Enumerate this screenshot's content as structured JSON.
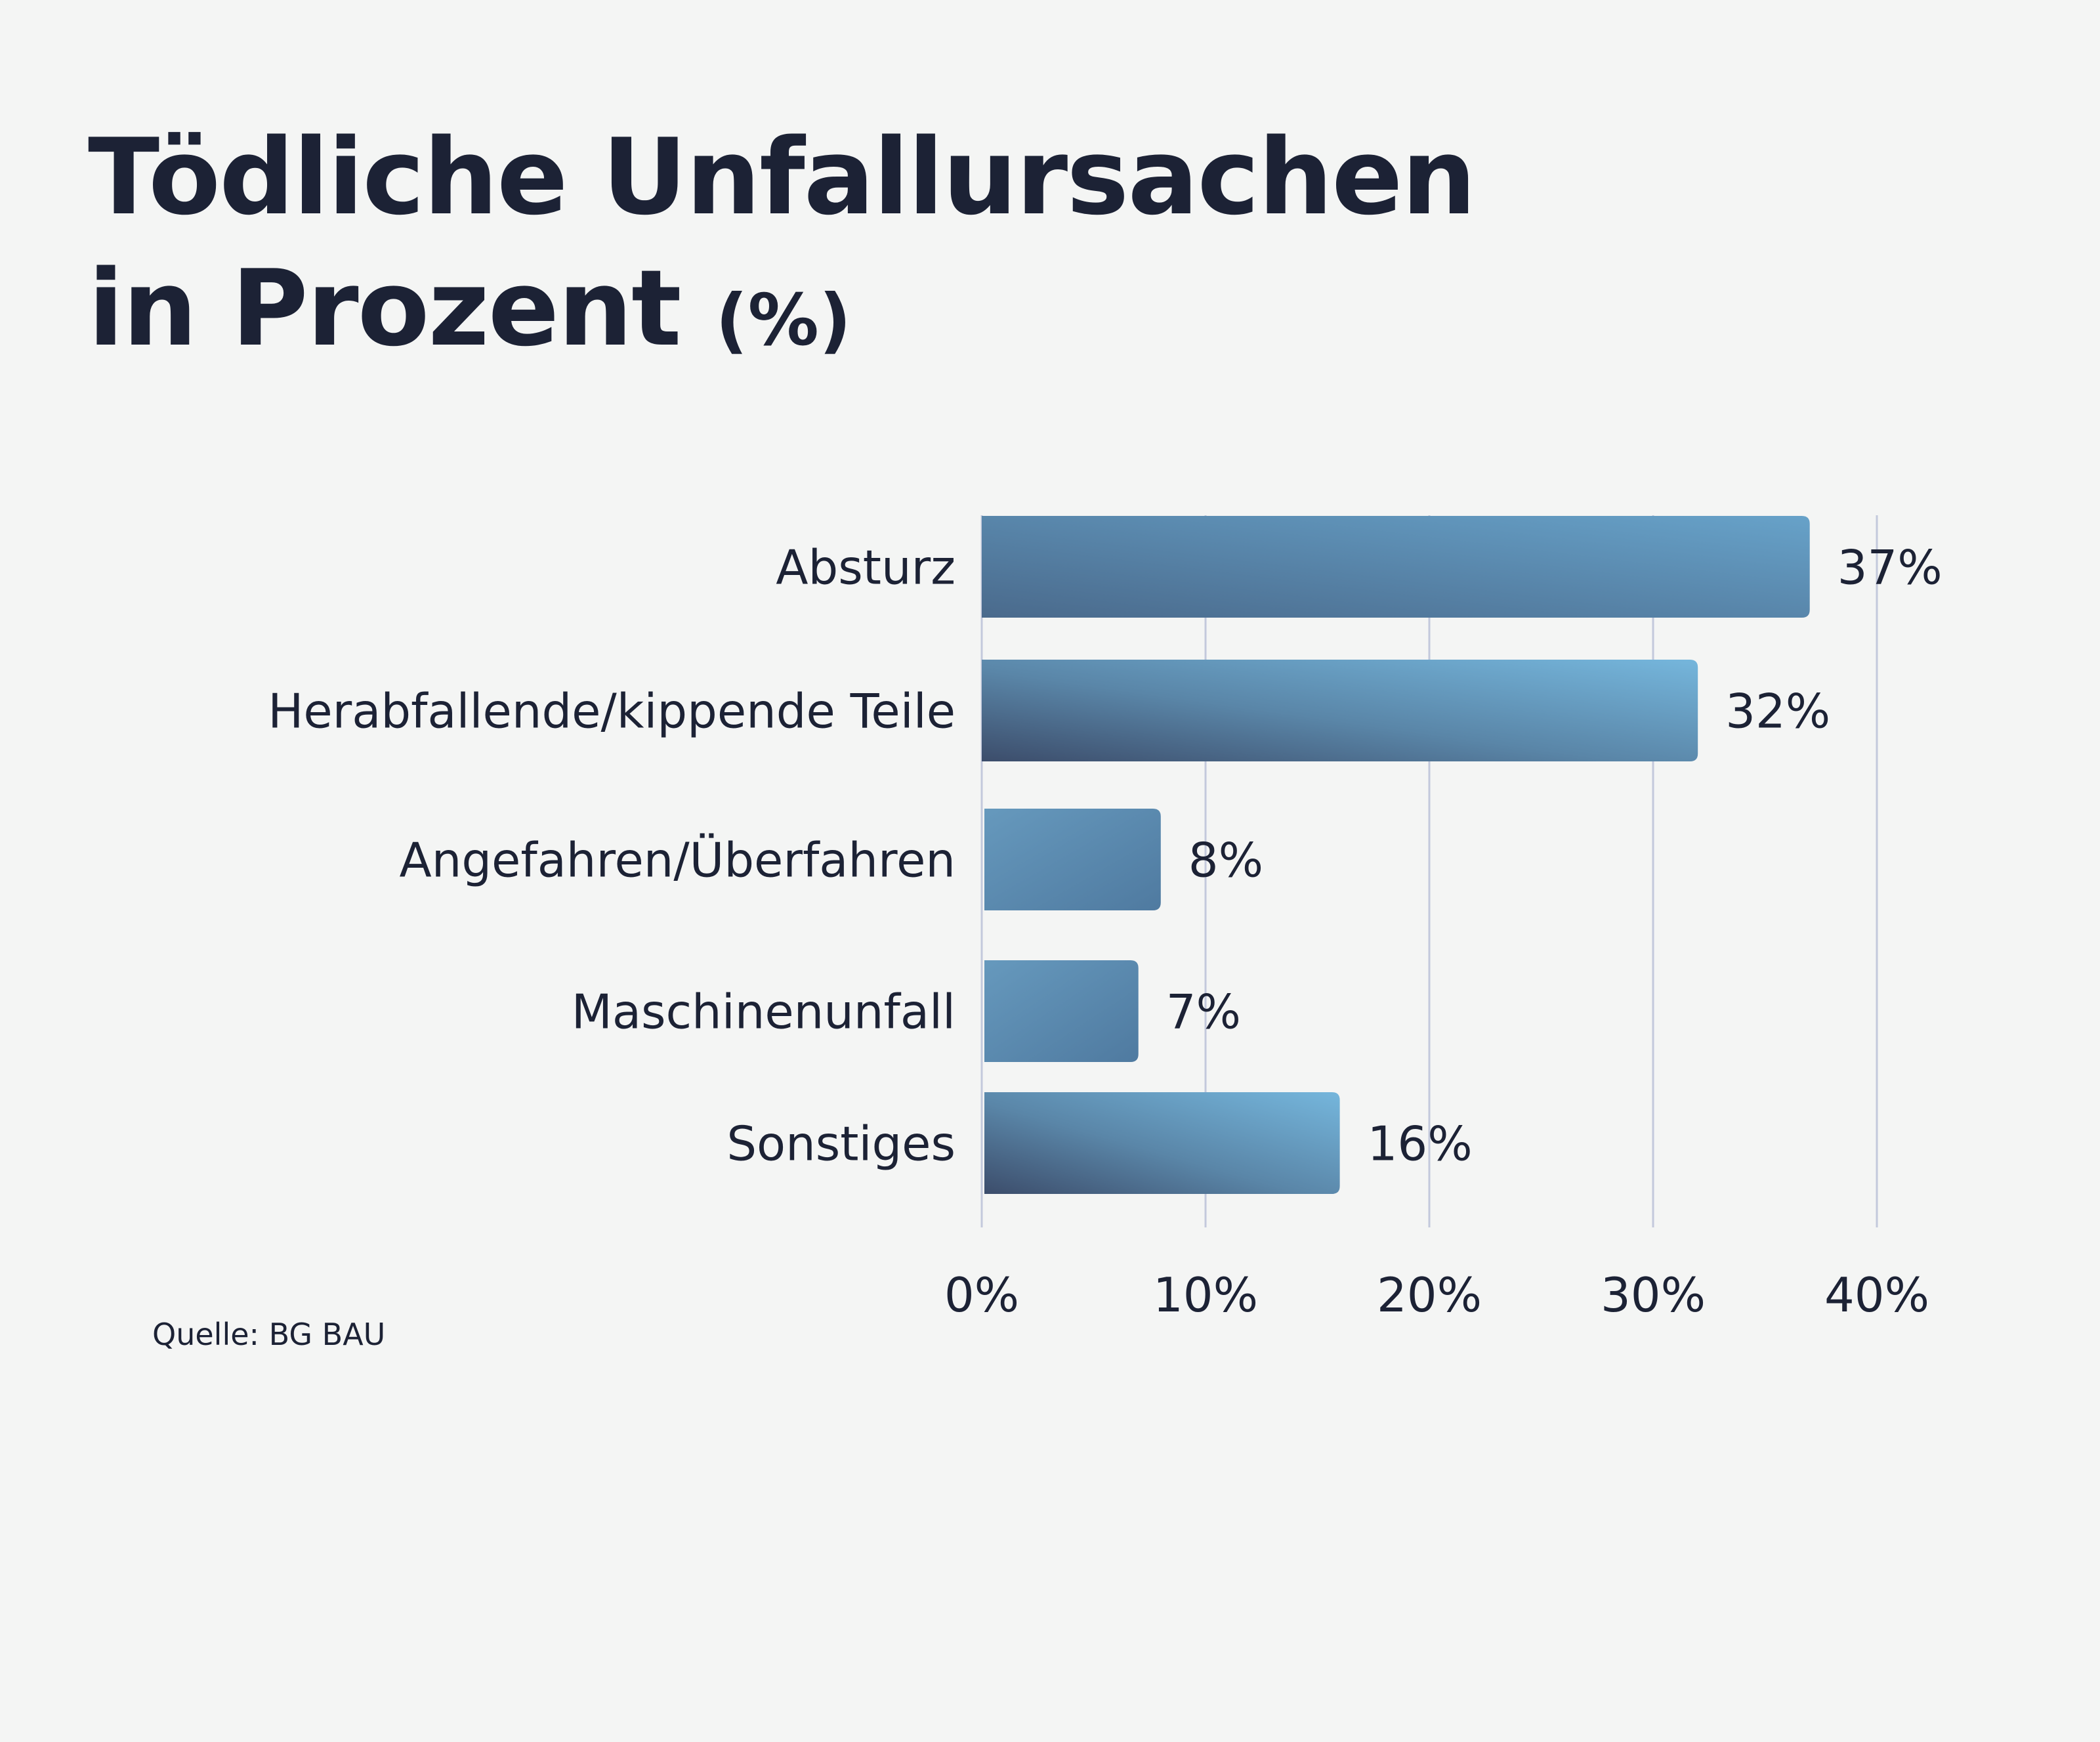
{
  "title": {
    "line1": "Tödliche Unfallursachen",
    "line2": "in Prozent",
    "unit": "(%)"
  },
  "source": "Quelle: BG BAU",
  "colors": {
    "text": "#1c2235",
    "grid": "#c3c9dc",
    "bar_dark": "#3c4d6b",
    "bar_mid": "#5a86a8",
    "bar_light": "#75b6dc",
    "background": "#f4f5f4"
  },
  "chart_data": {
    "type": "bar",
    "orientation": "horizontal",
    "title": "Tödliche Unfallursachen in Prozent (%)",
    "xlabel": "",
    "ylabel": "",
    "xlim": [
      0,
      40
    ],
    "x_ticks": [
      0,
      10,
      20,
      30,
      40
    ],
    "x_tick_labels": [
      "0%",
      "10%",
      "20%",
      "30%",
      "40%"
    ],
    "grid": true,
    "categories": [
      "Absturz",
      "Herabfallende/kippende Teile",
      "Angefahren/Überfahren",
      "Maschinenunfall",
      "Sonstiges"
    ],
    "values": [
      37,
      32,
      8,
      7,
      16
    ],
    "value_labels": [
      "37%",
      "32%",
      "8%",
      "7%",
      "16%"
    ]
  }
}
